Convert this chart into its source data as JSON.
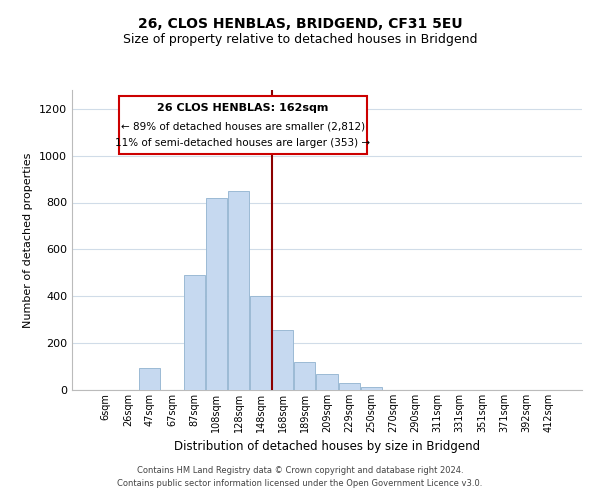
{
  "title": "26, CLOS HENBLAS, BRIDGEND, CF31 5EU",
  "subtitle": "Size of property relative to detached houses in Bridgend",
  "xlabel": "Distribution of detached houses by size in Bridgend",
  "ylabel": "Number of detached properties",
  "bar_labels": [
    "6sqm",
    "26sqm",
    "47sqm",
    "67sqm",
    "87sqm",
    "108sqm",
    "128sqm",
    "148sqm",
    "168sqm",
    "189sqm",
    "209sqm",
    "229sqm",
    "250sqm",
    "270sqm",
    "290sqm",
    "311sqm",
    "331sqm",
    "351sqm",
    "371sqm",
    "392sqm",
    "412sqm"
  ],
  "bar_values": [
    0,
    0,
    95,
    0,
    490,
    820,
    850,
    400,
    255,
    120,
    68,
    30,
    12,
    0,
    0,
    0,
    0,
    0,
    0,
    0,
    0
  ],
  "bar_color": "#c6d9f0",
  "bar_edge_color": "#9bbad4",
  "vline_color": "#8b0000",
  "ylim": [
    0,
    1280
  ],
  "yticks": [
    0,
    200,
    400,
    600,
    800,
    1000,
    1200
  ],
  "annotation_title": "26 CLOS HENBLAS: 162sqm",
  "annotation_line1": "← 89% of detached houses are smaller (2,812)",
  "annotation_line2": "11% of semi-detached houses are larger (353) →",
  "annotation_box_color": "#ffffff",
  "annotation_box_edge": "#cc0000",
  "footer_line1": "Contains HM Land Registry data © Crown copyright and database right 2024.",
  "footer_line2": "Contains public sector information licensed under the Open Government Licence v3.0.",
  "bg_color": "#ffffff",
  "grid_color": "#d0dce8",
  "title_fontsize": 10,
  "subtitle_fontsize": 9,
  "ylabel_fontsize": 8,
  "xlabel_fontsize": 8.5
}
